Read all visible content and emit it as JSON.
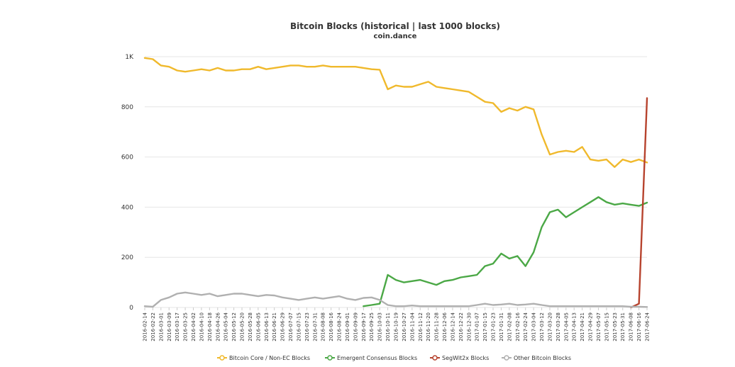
{
  "chart_data": {
    "type": "line",
    "title": "Bitcoin Blocks (historical | last 1000 blocks)",
    "subtitle": "coin.dance",
    "ylim": [
      0,
      1000
    ],
    "yticks": [
      {
        "value": 0,
        "label": "0"
      },
      {
        "value": 200,
        "label": "200"
      },
      {
        "value": 400,
        "label": "400"
      },
      {
        "value": 600,
        "label": "600"
      },
      {
        "value": 800,
        "label": "800"
      },
      {
        "value": 1000,
        "label": "1K"
      }
    ],
    "grid": true,
    "legend_position": "bottom",
    "x": [
      "2016-02-14",
      "2016-02-22",
      "2016-03-01",
      "2016-03-09",
      "2016-03-17",
      "2016-03-25",
      "2016-04-02",
      "2016-04-10",
      "2016-04-18",
      "2016-04-26",
      "2016-05-04",
      "2016-05-12",
      "2016-05-20",
      "2016-05-28",
      "2016-06-05",
      "2016-06-13",
      "2016-06-21",
      "2016-06-29",
      "2016-07-07",
      "2016-07-15",
      "2016-07-23",
      "2016-07-31",
      "2016-08-08",
      "2016-08-16",
      "2016-08-24",
      "2016-09-01",
      "2016-09-09",
      "2016-09-17",
      "2016-09-25",
      "2016-10-03",
      "2016-10-11",
      "2016-10-19",
      "2016-10-27",
      "2016-11-04",
      "2016-11-12",
      "2016-11-20",
      "2016-11-28",
      "2016-12-06",
      "2016-12-14",
      "2016-12-22",
      "2016-12-30",
      "2017-01-07",
      "2017-01-15",
      "2017-01-23",
      "2017-01-31",
      "2017-02-08",
      "2017-02-16",
      "2017-02-24",
      "2017-03-04",
      "2017-03-12",
      "2017-03-20",
      "2017-03-28",
      "2017-04-05",
      "2017-04-13",
      "2017-04-21",
      "2017-04-29",
      "2017-05-07",
      "2017-05-15",
      "2017-05-23",
      "2017-05-31",
      "2017-06-08",
      "2017-06-16",
      "2017-06-24"
    ],
    "series": [
      {
        "name": "Bitcoin Core / Non-EC Blocks",
        "color": "#f0b92c",
        "values": [
          995,
          990,
          965,
          960,
          945,
          940,
          945,
          950,
          945,
          955,
          945,
          945,
          950,
          950,
          960,
          950,
          955,
          960,
          965,
          965,
          960,
          960,
          965,
          960,
          960,
          960,
          960,
          955,
          950,
          948,
          870,
          885,
          880,
          880,
          890,
          900,
          880,
          875,
          870,
          865,
          860,
          840,
          820,
          815,
          780,
          795,
          785,
          800,
          790,
          690,
          610,
          620,
          625,
          620,
          640,
          590,
          585,
          590,
          560,
          590,
          580,
          590,
          578
        ]
      },
      {
        "name": "Emergent Consensus Blocks",
        "color": "#4ba846",
        "values": [
          null,
          null,
          null,
          null,
          null,
          null,
          null,
          null,
          null,
          null,
          null,
          null,
          null,
          null,
          null,
          null,
          null,
          null,
          null,
          null,
          null,
          null,
          null,
          null,
          null,
          null,
          null,
          5,
          10,
          15,
          130,
          110,
          100,
          105,
          110,
          100,
          90,
          105,
          110,
          120,
          125,
          130,
          165,
          175,
          215,
          195,
          205,
          165,
          220,
          320,
          380,
          390,
          360,
          380,
          400,
          420,
          440,
          420,
          410,
          415,
          410,
          405,
          418
        ]
      },
      {
        "name": "SegWit2x Blocks",
        "color": "#b7432e",
        "values": [
          null,
          null,
          null,
          null,
          null,
          null,
          null,
          null,
          null,
          null,
          null,
          null,
          null,
          null,
          null,
          null,
          null,
          null,
          null,
          null,
          null,
          null,
          null,
          null,
          null,
          null,
          null,
          null,
          null,
          null,
          null,
          null,
          null,
          null,
          null,
          null,
          null,
          null,
          null,
          null,
          null,
          null,
          null,
          null,
          null,
          null,
          null,
          null,
          null,
          null,
          null,
          null,
          null,
          null,
          null,
          null,
          null,
          null,
          null,
          null,
          0,
          15,
          835
        ]
      },
      {
        "name": "Other Bitcoin Blocks",
        "color": "#b0b0b0",
        "values": [
          5,
          3,
          30,
          40,
          55,
          60,
          55,
          50,
          55,
          45,
          50,
          55,
          55,
          50,
          45,
          50,
          48,
          40,
          35,
          30,
          35,
          40,
          35,
          40,
          45,
          35,
          30,
          38,
          40,
          30,
          10,
          5,
          5,
          8,
          5,
          5,
          5,
          5,
          5,
          5,
          5,
          10,
          15,
          10,
          12,
          15,
          10,
          12,
          15,
          10,
          5,
          5,
          5,
          5,
          5,
          5,
          5,
          5,
          5,
          5,
          3,
          3,
          2
        ]
      }
    ]
  }
}
